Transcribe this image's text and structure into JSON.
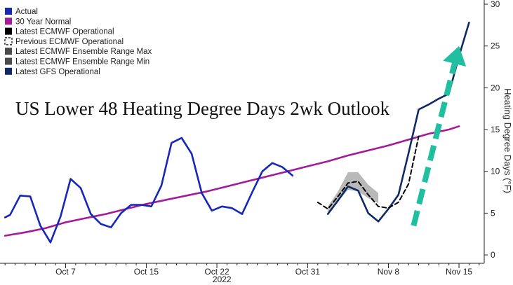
{
  "chart_data": {
    "type": "line",
    "title": "US Lower 48 Heating Degree Days 2wk Outlook",
    "ylabel": "Heating Degree Days (°F)",
    "xlabel": "2022",
    "ylim": [
      -1,
      30
    ],
    "y_ticks": [
      0,
      5,
      10,
      15,
      20,
      25,
      30
    ],
    "x_ticks": [
      {
        "label": "Oct 7",
        "day": 7
      },
      {
        "label": "Oct 15",
        "day": 15
      },
      {
        "label": "Oct 22",
        "day": 22
      },
      {
        "label": "Oct 31",
        "day": 31
      },
      {
        "label": "Nov 8",
        "day": 39
      },
      {
        "label": "Nov 15",
        "day": 46
      }
    ],
    "year_label": "2022",
    "legend_placement": "top-left",
    "grid": false,
    "series": [
      {
        "name": "Actual",
        "color": "#1727b8",
        "style": "solid",
        "points": [
          [
            1.0,
            4.5
          ],
          [
            1.5,
            4.8
          ],
          [
            2.5,
            7.1
          ],
          [
            3.5,
            7.0
          ],
          [
            4.5,
            3.5
          ],
          [
            5.5,
            1.5
          ],
          [
            6.5,
            4.6
          ],
          [
            7.5,
            9.1
          ],
          [
            8.5,
            8.0
          ],
          [
            9.5,
            4.9
          ],
          [
            10.5,
            3.7
          ],
          [
            11.5,
            3.3
          ],
          [
            12.5,
            5.0
          ],
          [
            13.5,
            6.0
          ],
          [
            14.5,
            6.0
          ],
          [
            15.5,
            5.8
          ],
          [
            16.5,
            8.3
          ],
          [
            17.5,
            13.4
          ],
          [
            18.5,
            14.0
          ],
          [
            19.5,
            12.1
          ],
          [
            20.5,
            7.4
          ],
          [
            21.5,
            5.3
          ],
          [
            22.5,
            5.8
          ],
          [
            23.5,
            5.6
          ],
          [
            24.5,
            4.9
          ],
          [
            25.5,
            7.5
          ],
          [
            26.5,
            10.0
          ],
          [
            27.5,
            11.0
          ],
          [
            28.5,
            10.5
          ],
          [
            29.5,
            9.5
          ]
        ]
      },
      {
        "name": "30 Year Normal",
        "color": "#a31b9a",
        "style": "solid",
        "points": [
          [
            1.0,
            2.3
          ],
          [
            3.0,
            2.7
          ],
          [
            5.0,
            3.2
          ],
          [
            7.0,
            3.9
          ],
          [
            9.0,
            4.4
          ],
          [
            11.0,
            4.9
          ],
          [
            13.0,
            5.5
          ],
          [
            15.0,
            6.1
          ],
          [
            17.0,
            6.6
          ],
          [
            19.0,
            7.1
          ],
          [
            21.0,
            7.6
          ],
          [
            23.0,
            8.2
          ],
          [
            25.0,
            8.8
          ],
          [
            27.0,
            9.4
          ],
          [
            29.0,
            10.0
          ],
          [
            31.0,
            10.6
          ],
          [
            33.0,
            11.2
          ],
          [
            35.0,
            11.9
          ],
          [
            37.0,
            12.5
          ],
          [
            39.0,
            13.1
          ],
          [
            41.0,
            13.8
          ],
          [
            43.0,
            14.5
          ],
          [
            45.0,
            15.0
          ],
          [
            46.0,
            15.4
          ]
        ]
      },
      {
        "name": "Latest ECMWF Operational",
        "color": "#000000",
        "style": "solid",
        "points": []
      },
      {
        "name": "Previous ECMWF Operational",
        "color": "#000000",
        "style": "dashed",
        "points": [
          [
            32.0,
            6.3
          ],
          [
            33.0,
            5.5
          ],
          [
            34.0,
            7.0
          ],
          [
            35.0,
            8.6
          ],
          [
            36.0,
            8.8
          ],
          [
            37.0,
            7.2
          ],
          [
            38.0,
            5.8
          ],
          [
            39.0,
            5.6
          ],
          [
            40.0,
            6.3
          ],
          [
            41.0,
            8.5
          ],
          [
            42.0,
            14.2
          ]
        ]
      },
      {
        "name": "Latest ECMWF Ensemble Range Max",
        "color": "#4a4a4a",
        "style": "area",
        "points": [
          [
            33.0,
            5.8
          ],
          [
            34.0,
            7.6
          ],
          [
            35.0,
            9.9
          ],
          [
            36.0,
            9.9
          ],
          [
            37.0,
            8.4
          ],
          [
            38.0,
            7.4
          ]
        ]
      },
      {
        "name": "Latest ECMWF Ensemble Range Min",
        "color": "#4a4a4a",
        "style": "area",
        "points": [
          [
            33.0,
            5.0
          ],
          [
            34.0,
            6.4
          ],
          [
            35.0,
            7.8
          ],
          [
            36.0,
            7.6
          ],
          [
            37.0,
            6.8
          ],
          [
            38.0,
            6.2
          ]
        ]
      },
      {
        "name": "Latest GFS Operational",
        "color": "#0f2a66",
        "style": "solid",
        "points": [
          [
            33.0,
            4.9
          ],
          [
            34.0,
            6.5
          ],
          [
            35.0,
            8.2
          ],
          [
            36.0,
            7.7
          ],
          [
            37.0,
            5.0
          ],
          [
            38.0,
            4.0
          ],
          [
            39.0,
            5.5
          ],
          [
            40.0,
            7.2
          ],
          [
            41.0,
            12.2
          ],
          [
            42.0,
            17.4
          ],
          [
            43.0,
            18.0
          ],
          [
            44.0,
            18.7
          ],
          [
            45.0,
            19.3
          ],
          [
            46.0,
            23.8
          ],
          [
            47.0,
            27.8
          ]
        ]
      }
    ],
    "annotation": {
      "type": "arrow",
      "color": "#1fbf9f",
      "style": "dashed",
      "from": [
        41.5,
        3.5
      ],
      "to": [
        46.0,
        25.0
      ]
    }
  }
}
